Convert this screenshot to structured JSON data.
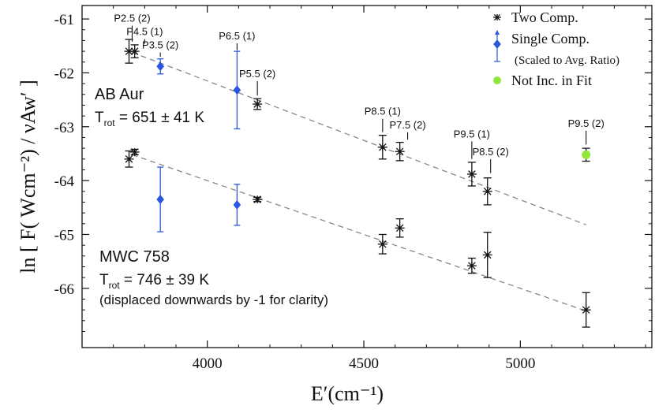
{
  "chart_data": {
    "type": "scatter",
    "xlabel": "E′(cm⁻¹)",
    "ylabel": "ln [ F( Wcm⁻²) / νAw′ ]",
    "xlim": [
      3600,
      5420
    ],
    "ylim": [
      -67.1,
      -60.75
    ],
    "xticks": [
      4000,
      4500,
      5000
    ],
    "yticks": [
      -66,
      -65,
      -64,
      -63,
      -62,
      -61
    ],
    "legend": {
      "placement": "top-right",
      "entries": [
        {
          "label": "Two Comp.",
          "marker": "asterisk",
          "color": "#111111"
        },
        {
          "label": "Single Comp.",
          "sublabel": "(Scaled to Avg. Ratio)",
          "marker": "diamond",
          "color": "#2a56e0"
        },
        {
          "label": "Not Inc. in Fit",
          "marker": "circle",
          "color": "#8fe83a"
        }
      ]
    },
    "groups": [
      {
        "name": "AB Aur",
        "trot_label": "T",
        "trot_sub": "rot",
        "trot_value": " = 651 ± 41 K",
        "fit_line": {
          "x": [
            3760,
            5210
          ],
          "y": [
            -61.62,
            -64.82
          ]
        },
        "points": [
          {
            "x": 3750,
            "y": -61.6,
            "err": 0.22,
            "kind": "two"
          },
          {
            "x": 3768,
            "y": -61.6,
            "err": 0.12,
            "kind": "two"
          },
          {
            "x": 3850,
            "y": -61.88,
            "err": 0.14,
            "kind": "single"
          },
          {
            "x": 4095,
            "y": -62.32,
            "err": 0.72,
            "kind": "single"
          },
          {
            "x": 4160,
            "y": -62.58,
            "err": 0.1,
            "kind": "two"
          },
          {
            "x": 4560,
            "y": -63.38,
            "err": 0.22,
            "kind": "two"
          },
          {
            "x": 4615,
            "y": -63.46,
            "err": 0.17,
            "kind": "two"
          },
          {
            "x": 4845,
            "y": -63.88,
            "err": 0.22,
            "kind": "two"
          },
          {
            "x": 4895,
            "y": -64.2,
            "err": 0.25,
            "kind": "two"
          },
          {
            "x": 5210,
            "y": -63.52,
            "err": 0.12,
            "kind": "excluded"
          }
        ]
      },
      {
        "name": "MWC 758",
        "trot_label": "T",
        "trot_sub": "rot",
        "trot_value": " = 746 ± 39 K",
        "note": "(displaced downwards by -1 for clarity)",
        "fit_line": {
          "x": [
            3760,
            5210
          ],
          "y": [
            -63.52,
            -66.42
          ]
        },
        "points": [
          {
            "x": 3750,
            "y": -63.6,
            "err": 0.15,
            "kind": "two"
          },
          {
            "x": 3768,
            "y": -63.47,
            "err": 0.05,
            "kind": "two"
          },
          {
            "x": 3850,
            "y": -64.35,
            "err": 0.6,
            "kind": "single"
          },
          {
            "x": 4095,
            "y": -64.45,
            "err": 0.38,
            "kind": "single"
          },
          {
            "x": 4160,
            "y": -64.35,
            "err": 0.04,
            "kind": "two"
          },
          {
            "x": 4560,
            "y": -65.18,
            "err": 0.18,
            "kind": "two"
          },
          {
            "x": 4615,
            "y": -64.88,
            "err": 0.17,
            "kind": "two"
          },
          {
            "x": 4845,
            "y": -65.58,
            "err": 0.14,
            "kind": "two"
          },
          {
            "x": 4895,
            "y": -65.38,
            "err": 0.42,
            "kind": "two"
          },
          {
            "x": 5210,
            "y": -66.4,
            "err": 0.32,
            "kind": "two"
          }
        ]
      }
    ],
    "annotations": [
      {
        "text": "P2.5 (2)",
        "x": 3760,
        "y": -61.05,
        "line_to": -61.42
      },
      {
        "text": "P4.5 (1)",
        "x": 3800,
        "y": -61.3,
        "line_to": -61.46
      },
      {
        "text": "P3.5 (2)",
        "x": 3850,
        "y": -61.55,
        "line_to": -61.7
      },
      {
        "text": "P6.5 (1)",
        "x": 4095,
        "y": -61.38,
        "line_to": -61.58
      },
      {
        "text": "P5.5 (2)",
        "x": 4160,
        "y": -62.08,
        "line_to": -62.42
      },
      {
        "text": "P8.5 (1)",
        "x": 4560,
        "y": -62.78,
        "line_to": -63.1
      },
      {
        "text": "P7.5 (2)",
        "x": 4640,
        "y": -63.03,
        "line_to": -63.24
      },
      {
        "text": "P9.5 (1)",
        "x": 4845,
        "y": -63.2,
        "line_to": -63.6
      },
      {
        "text": "P8.5 (2)",
        "x": 4905,
        "y": -63.53,
        "line_to": -63.86
      },
      {
        "text": "P9.5 (2)",
        "x": 5210,
        "y": -63.0,
        "line_to": -63.33
      }
    ]
  }
}
